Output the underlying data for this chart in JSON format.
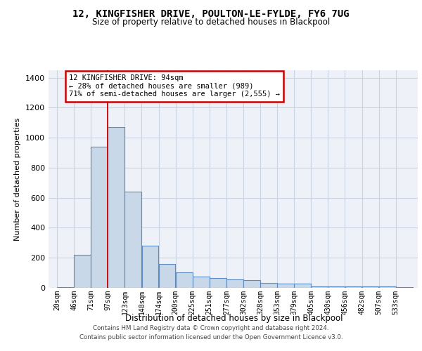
{
  "title_line1": "12, KINGFISHER DRIVE, POULTON-LE-FYLDE, FY6 7UG",
  "title_line2": "Size of property relative to detached houses in Blackpool",
  "xlabel": "Distribution of detached houses by size in Blackpool",
  "ylabel": "Number of detached properties",
  "bar_labels": [
    "20sqm",
    "46sqm",
    "71sqm",
    "97sqm",
    "123sqm",
    "148sqm",
    "174sqm",
    "200sqm",
    "225sqm",
    "251sqm",
    "277sqm",
    "302sqm",
    "328sqm",
    "353sqm",
    "379sqm",
    "405sqm",
    "430sqm",
    "456sqm",
    "482sqm",
    "507sqm",
    "533sqm"
  ],
  "bar_values": [
    5,
    220,
    940,
    1070,
    640,
    280,
    160,
    105,
    75,
    65,
    55,
    50,
    35,
    30,
    28,
    8,
    8,
    8,
    10,
    8,
    5
  ],
  "bar_color": "#c8d8e8",
  "bar_edge_color": "#5a8abf",
  "grid_color": "#c8d4e4",
  "background_color": "#eef2f8",
  "annotation_text": "12 KINGFISHER DRIVE: 94sqm\n← 28% of detached houses are smaller (989)\n71% of semi-detached houses are larger (2,555) →",
  "annotation_box_color": "#ffffff",
  "annotation_border_color": "#cc0000",
  "vline_x_idx": 3,
  "vline_color": "#cc0000",
  "ylim": [
    0,
    1450
  ],
  "bin_width": 25.5,
  "yticks": [
    0,
    200,
    400,
    600,
    800,
    1000,
    1200,
    1400
  ],
  "footer_line1": "Contains HM Land Registry data © Crown copyright and database right 2024.",
  "footer_line2": "Contains public sector information licensed under the Open Government Licence v3.0."
}
